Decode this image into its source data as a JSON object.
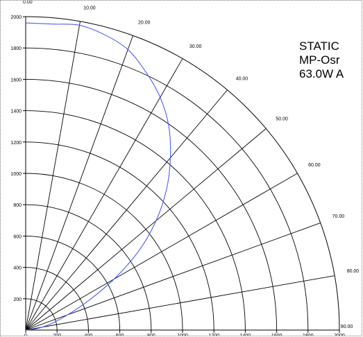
{
  "caption": {
    "line1": "STATIC",
    "line2": "MP-Osr",
    "line3": "63.0W A"
  },
  "chart_data": {
    "type": "polar",
    "title": "",
    "angle_ticks": [
      "0.00",
      "10.00",
      "20.00",
      "30.00",
      "40.00",
      "50.00",
      "60.00",
      "70.00",
      "80.00",
      "90.00"
    ],
    "radial_ticks": [
      200,
      400,
      600,
      800,
      1000,
      1200,
      1400,
      1600,
      1800,
      2000
    ],
    "y_tick_labels": [
      "200",
      "400",
      "600",
      "800",
      "1000",
      "1200",
      "1400",
      "1600",
      "1800",
      "2000"
    ],
    "x_tick_labels": [
      "0",
      "200",
      "400",
      "600",
      "800",
      "1000",
      "1200",
      "1400",
      "1600",
      "1800",
      "2000"
    ],
    "rlim": [
      0,
      2000
    ],
    "angle_range_deg": [
      0,
      90
    ],
    "series": [
      {
        "color": "#4b5cf5",
        "theta_deg": [
          0,
          5,
          10,
          15,
          20,
          25,
          30,
          35,
          40,
          45,
          50,
          55,
          60,
          65,
          70,
          75,
          80,
          85,
          90
        ],
        "r": [
          1960,
          1960,
          1975,
          1950,
          1905,
          1815,
          1715,
          1590,
          1435,
          1270,
          1085,
          880,
          650,
          440,
          285,
          185,
          110,
          50,
          0
        ]
      }
    ],
    "grid": true
  }
}
